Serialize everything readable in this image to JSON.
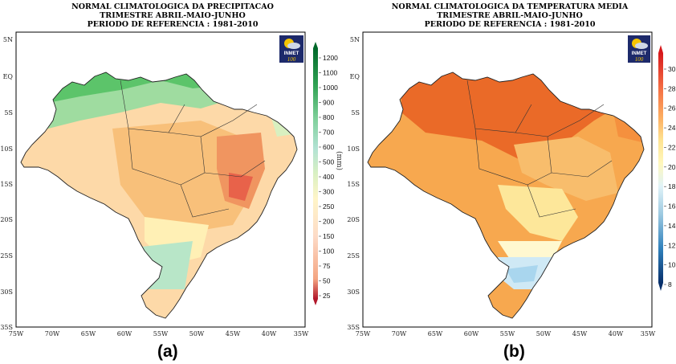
{
  "left": {
    "title": [
      "NORMAL CLIMATOLOGICA DA PRECIPITACAO",
      "TRIMESTRE ABRIL-MAIO-JUNHO",
      "PERIODO DE REFERENCIA : 1981-2010"
    ],
    "unit": "(mm)",
    "colorbar": [
      "1200",
      "1100",
      "1000",
      "900",
      "800",
      "700",
      "600",
      "500",
      "400",
      "300",
      "250",
      "200",
      "150",
      "100",
      "75",
      "50",
      "25"
    ],
    "label": "(a)"
  },
  "right": {
    "title": [
      "NORMAL CLIMATOLOGICA DA TEMPERATURA MEDIA",
      "TRIMESTRE ABRIL-MAIO-JUNHO",
      "PERIODO DE REFERENCIA : 1981-2010"
    ],
    "colorbar": [
      "30",
      "28",
      "26",
      "24",
      "22",
      "20",
      "18",
      "16",
      "14",
      "12",
      "10",
      "8"
    ],
    "label": "(b)"
  },
  "lat_ticks": [
    "5N",
    "EQ",
    "5S",
    "10S",
    "15S",
    "20S",
    "25S",
    "30S",
    "35S"
  ],
  "lon_ticks": [
    "75W",
    "70W",
    "65W",
    "60W",
    "55W",
    "50W",
    "45W",
    "40W",
    "35W"
  ],
  "logo": {
    "text": "INMET",
    "number": "100"
  },
  "colors": {
    "precip_scale": [
      "#d7301f",
      "#fc8d59",
      "#fdbb84",
      "#fee8b0",
      "#d9f0a3",
      "#a1dab4",
      "#66c2a4",
      "#41ab5d",
      "#238b45",
      "#006d2c"
    ],
    "temp_scale": [
      "#08306b",
      "#2171b5",
      "#6baed6",
      "#c6dbef",
      "#fff7bc",
      "#fee391",
      "#fdae61",
      "#f46d43",
      "#e84a1a",
      "#d73027"
    ]
  }
}
